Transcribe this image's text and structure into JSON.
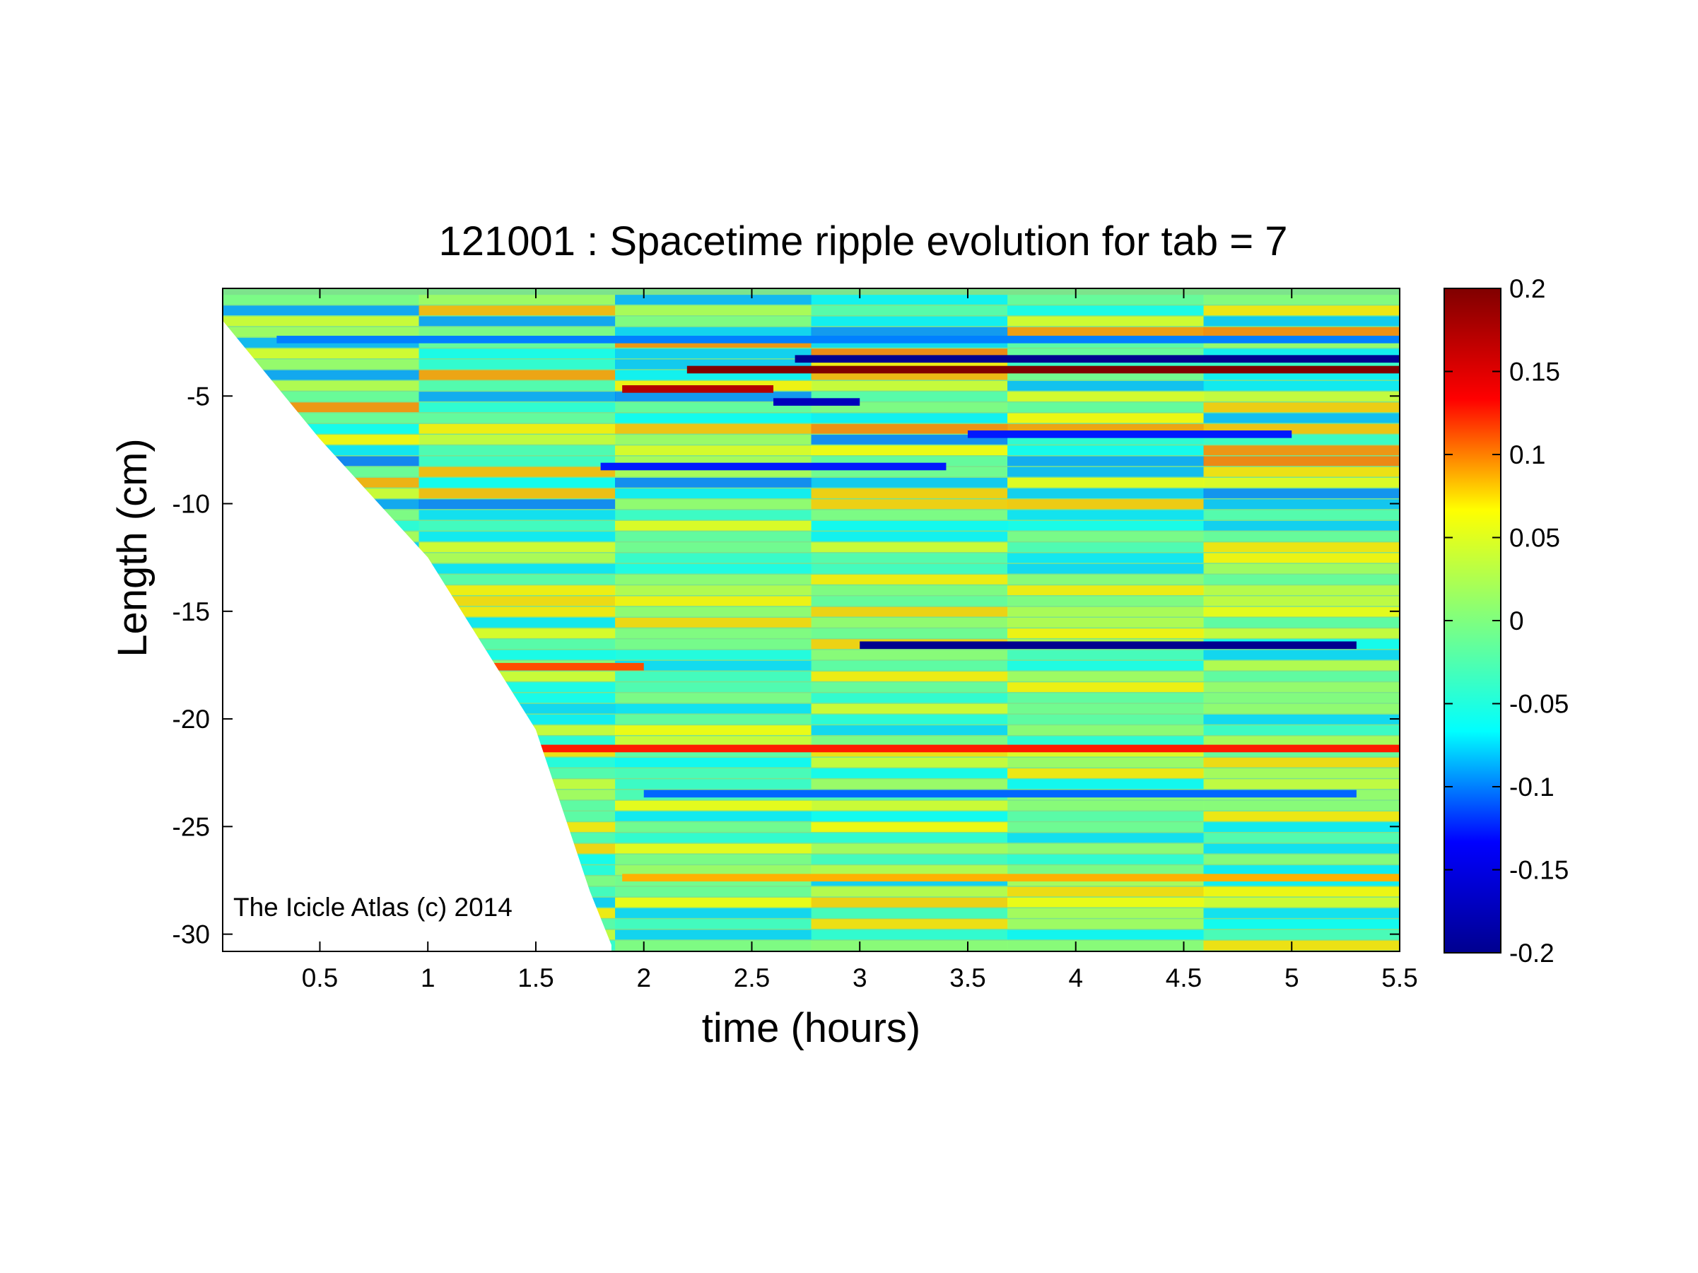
{
  "chart_data": {
    "type": "heatmap",
    "title": "121001 : Spacetime ripple evolution for tab = 7",
    "xlabel": "time (hours)",
    "ylabel": "Length (cm)",
    "xlim": [
      0.05,
      5.5
    ],
    "ylim": [
      -30.8,
      0
    ],
    "xticks": [
      0.5,
      1,
      1.5,
      2,
      2.5,
      3,
      3.5,
      4,
      4.5,
      5,
      5.5
    ],
    "xtick_labels": [
      "0.5",
      "1",
      "1.5",
      "2",
      "2.5",
      "3",
      "3.5",
      "4",
      "4.5",
      "5",
      "5.5"
    ],
    "yticks": [
      -5,
      -10,
      -15,
      -20,
      -25,
      -30
    ],
    "ytick_labels": [
      "-5",
      "-10",
      "-15",
      "-20",
      "-25",
      "-30"
    ],
    "colormap": "jet",
    "clim": [
      -0.2,
      0.2
    ],
    "colorbar_ticks": [
      0.2,
      0.15,
      0.1,
      0.05,
      0,
      -0.05,
      -0.1,
      -0.15,
      -0.2
    ],
    "colorbar_tick_labels": [
      "0.2",
      "0.15",
      "0.1",
      "0.05",
      "0",
      "-0.05",
      "-0.1",
      "-0.15",
      "-0.2"
    ],
    "growth_front": {
      "description_time_hours": [
        0.05,
        0.5,
        1.0,
        1.5,
        1.75,
        1.85
      ],
      "length_cm": [
        -1.5,
        -7.0,
        -12.5,
        -20.5,
        -28.0,
        -30.5
      ]
    },
    "colors": {
      "jet": [
        "#00008f",
        "#0000ff",
        "#00ffff",
        "#7fff7f",
        "#ffff00",
        "#ff0000",
        "#800000"
      ],
      "field_base": "#7de38c"
    }
  },
  "watermark": "The Icicle Atlas (c) 2014"
}
